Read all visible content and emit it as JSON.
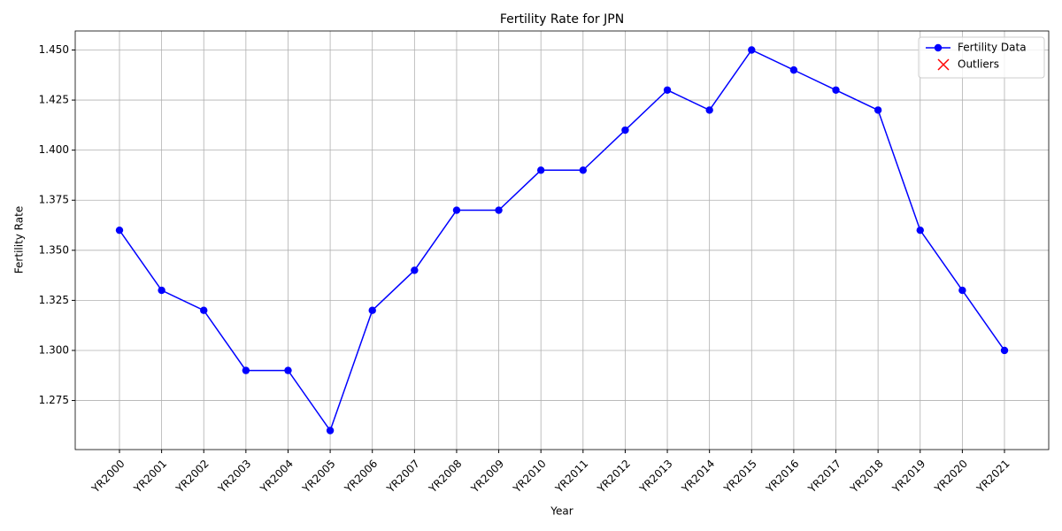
{
  "chart_data": {
    "type": "line",
    "title": "Fertility Rate for JPN",
    "x_label": "Year",
    "y_label": "Fertility Rate",
    "categories": [
      "YR2000",
      "YR2001",
      "YR2002",
      "YR2003",
      "YR2004",
      "YR2005",
      "YR2006",
      "YR2007",
      "YR2008",
      "YR2009",
      "YR2010",
      "YR2011",
      "YR2012",
      "YR2013",
      "YR2014",
      "YR2015",
      "YR2016",
      "YR2017",
      "YR2018",
      "YR2019",
      "YR2020",
      "YR2021"
    ],
    "series": [
      {
        "name": "Fertility Data",
        "color": "#0000ff",
        "marker": "o",
        "values": [
          1.36,
          1.33,
          1.32,
          1.29,
          1.29,
          1.26,
          1.32,
          1.34,
          1.37,
          1.37,
          1.39,
          1.39,
          1.41,
          1.43,
          1.42,
          1.45,
          1.44,
          1.43,
          1.42,
          1.36,
          1.33,
          1.3
        ]
      },
      {
        "name": "Outliers",
        "color": "#ff0000",
        "marker": "x",
        "values": [
          null,
          null,
          null,
          null,
          null,
          null,
          null,
          null,
          null,
          null,
          null,
          null,
          null,
          null,
          null,
          null,
          null,
          null,
          null,
          null,
          null,
          null
        ]
      }
    ],
    "ylim": [
      1.2505,
      1.4595
    ],
    "yticks": [
      1.275,
      {
        "value": 1.3,
        "label": "1.300"
      },
      1.325,
      {
        "value": 1.35,
        "label": "1.350"
      },
      1.375,
      {
        "value": 1.4,
        "label": "1.400"
      },
      1.425,
      {
        "value": 1.45,
        "label": "1.450"
      }
    ],
    "grid": true,
    "legend": "upper right"
  }
}
